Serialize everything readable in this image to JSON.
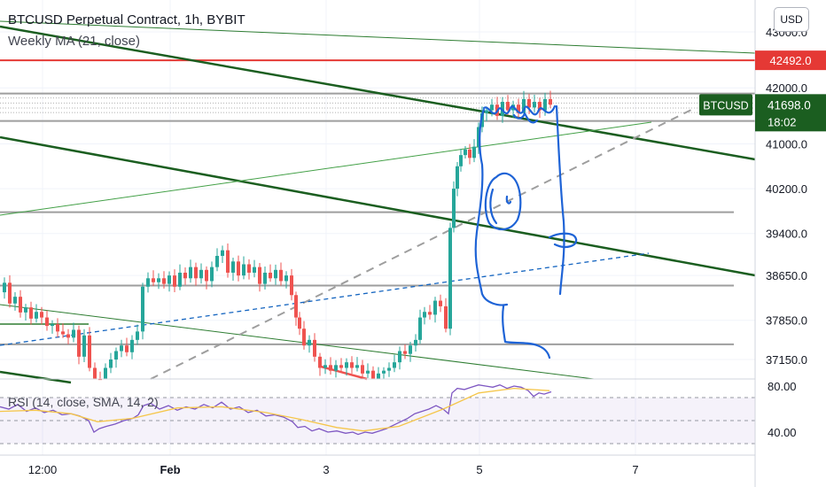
{
  "header": {
    "title": "BTCUSD Perpetual Contract, 1h, BYBIT",
    "indicator": "Weekly MA (21, close)"
  },
  "currency_button": "USD",
  "rsi_label": "RSI (14, close, SMA, 14, 2)",
  "price_tags": {
    "line_value": "42492.0",
    "symbol": "BTCUSD",
    "last_price": "41698.0",
    "countdown": "18:02"
  },
  "colors": {
    "up": "#26a69a",
    "down": "#ef5350",
    "line_red": "#e53935",
    "trend_dark": "#1b5e20",
    "trend_light": "#4caf50",
    "blue": "#1565c0",
    "rsi": "#7e57c2",
    "rsi_ma": "#f5c64a"
  },
  "chart_data": {
    "type": "candlestick",
    "timeframe": "1h",
    "price_axis": {
      "ticks": [
        "43000.0",
        "42000.0",
        "41000.0",
        "40200.0",
        "39400.0",
        "38650.0",
        "37850.0",
        "37150.0"
      ],
      "range": [
        36900,
        43300
      ]
    },
    "rsi_axis": {
      "ticks": [
        "80.00",
        "40.00"
      ],
      "range": [
        28,
        88
      ]
    },
    "x_axis": {
      "ticks": [
        "12:00",
        "Feb",
        "3",
        "5",
        "7"
      ]
    },
    "price_path": [
      [
        0,
        38350
      ],
      [
        6,
        38520
      ],
      [
        12,
        38150
      ],
      [
        18,
        38270
      ],
      [
        24,
        37990
      ],
      [
        30,
        38080
      ],
      [
        36,
        37880
      ],
      [
        42,
        38000
      ],
      [
        48,
        37900
      ],
      [
        54,
        37750
      ],
      [
        60,
        37780
      ],
      [
        66,
        37650
      ],
      [
        72,
        37600
      ],
      [
        78,
        37540
      ],
      [
        84,
        37680
      ],
      [
        90,
        37200
      ],
      [
        96,
        37580
      ],
      [
        102,
        37000
      ],
      [
        108,
        36800
      ],
      [
        114,
        36750
      ],
      [
        120,
        37000
      ],
      [
        126,
        37150
      ],
      [
        132,
        37300
      ],
      [
        138,
        37400
      ],
      [
        144,
        37280
      ],
      [
        150,
        37500
      ],
      [
        156,
        37650
      ],
      [
        162,
        38450
      ],
      [
        168,
        38600
      ],
      [
        174,
        38530
      ],
      [
        180,
        38600
      ],
      [
        186,
        38500
      ],
      [
        192,
        38650
      ],
      [
        198,
        38450
      ],
      [
        204,
        38700
      ],
      [
        210,
        38600
      ],
      [
        216,
        38800
      ],
      [
        222,
        38600
      ],
      [
        228,
        38750
      ],
      [
        234,
        38550
      ],
      [
        240,
        38800
      ],
      [
        246,
        39000
      ],
      [
        252,
        39100
      ],
      [
        258,
        38700
      ],
      [
        264,
        38900
      ],
      [
        270,
        38650
      ],
      [
        276,
        38850
      ],
      [
        282,
        38700
      ],
      [
        288,
        38800
      ],
      [
        294,
        38500
      ],
      [
        300,
        38700
      ],
      [
        306,
        38600
      ],
      [
        312,
        38750
      ],
      [
        318,
        38550
      ],
      [
        324,
        38650
      ],
      [
        330,
        38300
      ],
      [
        334,
        37900
      ],
      [
        338,
        37700
      ],
      [
        344,
        37400
      ],
      [
        350,
        37500
      ],
      [
        356,
        37200
      ],
      [
        362,
        37000
      ],
      [
        368,
        37050
      ],
      [
        374,
        36950
      ],
      [
        380,
        37050
      ],
      [
        386,
        37000
      ],
      [
        392,
        37100
      ],
      [
        398,
        37000
      ],
      [
        404,
        37050
      ],
      [
        410,
        36900
      ],
      [
        416,
        36950
      ],
      [
        422,
        36800
      ],
      [
        428,
        36900
      ],
      [
        434,
        36950
      ],
      [
        440,
        37000
      ],
      [
        446,
        37100
      ],
      [
        452,
        37300
      ],
      [
        458,
        37250
      ],
      [
        464,
        37400
      ],
      [
        470,
        37500
      ],
      [
        474,
        37900
      ],
      [
        480,
        38000
      ],
      [
        486,
        37950
      ],
      [
        492,
        38200
      ],
      [
        498,
        38100
      ],
      [
        504,
        37700
      ],
      [
        508,
        39500
      ],
      [
        512,
        40200
      ],
      [
        516,
        40600
      ],
      [
        520,
        40800
      ],
      [
        526,
        40900
      ],
      [
        530,
        40750
      ],
      [
        536,
        40950
      ],
      [
        540,
        41300
      ],
      [
        544,
        41550
      ],
      [
        550,
        41600
      ],
      [
        556,
        41700
      ],
      [
        562,
        41500
      ],
      [
        568,
        41750
      ],
      [
        574,
        41600
      ],
      [
        580,
        41700
      ],
      [
        586,
        41550
      ],
      [
        592,
        41800
      ],
      [
        598,
        41650
      ],
      [
        604,
        41750
      ],
      [
        610,
        41600
      ],
      [
        616,
        41800
      ],
      [
        622,
        41700
      ]
    ],
    "rsi_path": [
      [
        0,
        62
      ],
      [
        10,
        60
      ],
      [
        20,
        64
      ],
      [
        30,
        58
      ],
      [
        40,
        61
      ],
      [
        50,
        57
      ],
      [
        60,
        59
      ],
      [
        70,
        55
      ],
      [
        80,
        56
      ],
      [
        90,
        54
      ],
      [
        100,
        50
      ],
      [
        106,
        40
      ],
      [
        112,
        43
      ],
      [
        120,
        45
      ],
      [
        130,
        47
      ],
      [
        140,
        50
      ],
      [
        150,
        52
      ],
      [
        156,
        55
      ],
      [
        162,
        63
      ],
      [
        170,
        65
      ],
      [
        180,
        60
      ],
      [
        190,
        63
      ],
      [
        200,
        59
      ],
      [
        210,
        62
      ],
      [
        220,
        60
      ],
      [
        230,
        64
      ],
      [
        240,
        61
      ],
      [
        250,
        66
      ],
      [
        260,
        60
      ],
      [
        270,
        62
      ],
      [
        280,
        57
      ],
      [
        290,
        59
      ],
      [
        300,
        54
      ],
      [
        310,
        55
      ],
      [
        320,
        53
      ],
      [
        330,
        49
      ],
      [
        336,
        44
      ],
      [
        344,
        45
      ],
      [
        352,
        41
      ],
      [
        360,
        43
      ],
      [
        370,
        40
      ],
      [
        380,
        41
      ],
      [
        390,
        39
      ],
      [
        398,
        40
      ],
      [
        404,
        38
      ],
      [
        412,
        40
      ],
      [
        420,
        39
      ],
      [
        428,
        41
      ],
      [
        436,
        43
      ],
      [
        444,
        46
      ],
      [
        452,
        49
      ],
      [
        460,
        52
      ],
      [
        468,
        56
      ],
      [
        476,
        58
      ],
      [
        484,
        60
      ],
      [
        492,
        63
      ],
      [
        500,
        60
      ],
      [
        506,
        56
      ],
      [
        510,
        74
      ],
      [
        516,
        78
      ],
      [
        524,
        77
      ],
      [
        532,
        79
      ],
      [
        540,
        81
      ],
      [
        548,
        80
      ],
      [
        556,
        79
      ],
      [
        564,
        81
      ],
      [
        572,
        78
      ],
      [
        580,
        80
      ],
      [
        588,
        79
      ],
      [
        596,
        76
      ],
      [
        602,
        71
      ],
      [
        608,
        74
      ],
      [
        614,
        73
      ],
      [
        622,
        75
      ]
    ],
    "rsi_ma_path": [
      [
        0,
        58
      ],
      [
        40,
        59
      ],
      [
        80,
        56
      ],
      [
        110,
        49
      ],
      [
        150,
        52
      ],
      [
        200,
        61
      ],
      [
        250,
        62
      ],
      [
        300,
        57
      ],
      [
        340,
        51
      ],
      [
        380,
        44
      ],
      [
        410,
        41
      ],
      [
        450,
        45
      ],
      [
        500,
        60
      ],
      [
        540,
        74
      ],
      [
        580,
        78
      ],
      [
        620,
        76
      ]
    ],
    "levels": [
      {
        "price": 42492,
        "style": "red"
      },
      {
        "price": 41900,
        "style": "gray"
      },
      {
        "price": 41410,
        "style": "gray"
      },
      {
        "price": 39780,
        "style": "gray"
      },
      {
        "price": 38470,
        "style": "gray"
      },
      {
        "price": 37420,
        "style": "gray"
      }
    ]
  }
}
